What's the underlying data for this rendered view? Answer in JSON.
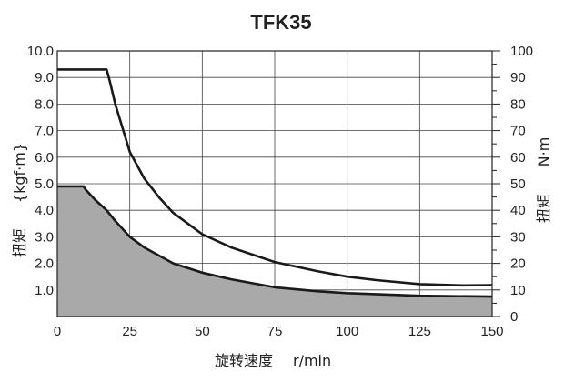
{
  "chart_data": {
    "type": "line",
    "title": "TFK35",
    "xlabel_cn": "旋转速度",
    "xlabel_unit": "r/min",
    "ylabel_left_cn": "扭矩",
    "ylabel_left_unit": "{kgf·m}",
    "ylabel_right_cn": "扭矩",
    "ylabel_right_unit": "N·m",
    "xlim": [
      0,
      150
    ],
    "ylim_left": [
      0,
      10
    ],
    "ylim_right": [
      0,
      100
    ],
    "x_ticks": [
      "0",
      "25",
      "50",
      "75",
      "100",
      "125",
      "150"
    ],
    "y_left_ticks": [
      "1.0",
      "2.0",
      "3.0",
      "4.0",
      "5.0",
      "6.0",
      "7.0",
      "8.0",
      "9.0",
      "10.0"
    ],
    "y_right_ticks": [
      "0",
      "10",
      "20",
      "30",
      "40",
      "50",
      "60",
      "70",
      "80",
      "90",
      "100"
    ],
    "grid": true,
    "series": [
      {
        "style": "line",
        "color": "#1a1a1a",
        "x": [
          0,
          17,
          18,
          20,
          25,
          30,
          35,
          40,
          50,
          60,
          75,
          90,
          100,
          110,
          125,
          140,
          150
        ],
        "y": [
          9.3,
          9.3,
          8.9,
          8.0,
          6.2,
          5.2,
          4.5,
          3.9,
          3.1,
          2.6,
          2.05,
          1.7,
          1.5,
          1.37,
          1.22,
          1.17,
          1.18
        ]
      },
      {
        "style": "area",
        "color": "#1a1a1a",
        "fill": "#a9a9a9",
        "x": [
          0,
          9,
          10,
          13,
          17,
          20,
          25,
          30,
          40,
          50,
          60,
          75,
          90,
          100,
          125,
          150
        ],
        "y": [
          4.9,
          4.9,
          4.75,
          4.4,
          4.0,
          3.6,
          3.0,
          2.6,
          2.0,
          1.65,
          1.4,
          1.1,
          0.95,
          0.88,
          0.78,
          0.75
        ]
      }
    ]
  }
}
